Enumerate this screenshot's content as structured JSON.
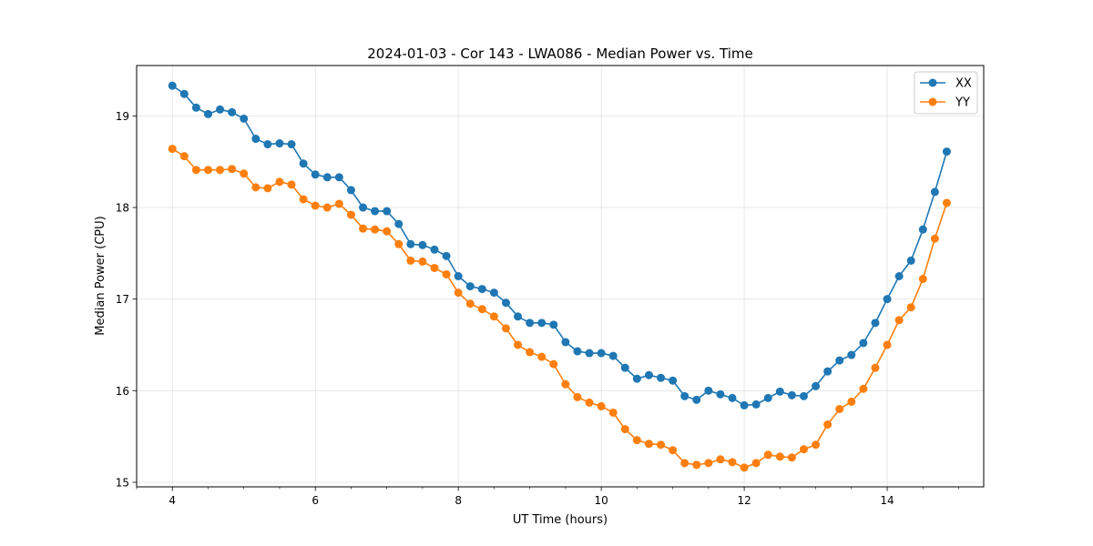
{
  "chart_data": {
    "type": "line",
    "title": "2024-01-03 - Cor 143 - LWA086 - Median Power vs. Time",
    "xlabel": "UT Time (hours)",
    "ylabel": "Median Power (CPU)",
    "xlim": [
      3.5,
      15.35
    ],
    "ylim": [
      14.95,
      19.55
    ],
    "xticks": [
      4,
      6,
      8,
      10,
      12,
      14
    ],
    "xtick_labels": [
      "4",
      "6",
      "8",
      "10",
      "12",
      "14"
    ],
    "xminor_step": 0.5,
    "yticks": [
      15,
      16,
      17,
      18,
      19
    ],
    "ytick_labels": [
      "15",
      "16",
      "17",
      "18",
      "19"
    ],
    "grid": true,
    "legend_position": "top-right",
    "x": [
      4.0,
      4.1667,
      4.3333,
      4.5,
      4.6667,
      4.8333,
      5.0,
      5.1667,
      5.3333,
      5.5,
      5.6667,
      5.8333,
      6.0,
      6.1667,
      6.3333,
      6.5,
      6.6667,
      6.8333,
      7.0,
      7.1667,
      7.3333,
      7.5,
      7.6667,
      7.8333,
      8.0,
      8.1667,
      8.3333,
      8.5,
      8.6667,
      8.8333,
      9.0,
      9.1667,
      9.3333,
      9.5,
      9.6667,
      9.8333,
      10.0,
      10.1667,
      10.3333,
      10.5,
      10.6667,
      10.8333,
      11.0,
      11.1667,
      11.3333,
      11.5,
      11.6667,
      11.8333,
      12.0,
      12.1667,
      12.3333,
      12.5,
      12.6667,
      12.8333,
      13.0,
      13.1667,
      13.3333,
      13.5,
      13.6667,
      13.8333,
      14.0,
      14.1667,
      14.3333,
      14.5,
      14.6667,
      14.8333
    ],
    "series": [
      {
        "name": "XX",
        "color": "#1f77b4",
        "values": [
          19.33,
          19.24,
          19.09,
          19.02,
          19.07,
          19.04,
          18.97,
          18.75,
          18.69,
          18.7,
          18.69,
          18.48,
          18.36,
          18.33,
          18.33,
          18.19,
          18.0,
          17.96,
          17.96,
          17.82,
          17.6,
          17.59,
          17.54,
          17.47,
          17.25,
          17.14,
          17.11,
          17.07,
          16.96,
          16.81,
          16.74,
          16.74,
          16.72,
          16.53,
          16.43,
          16.41,
          16.41,
          16.38,
          16.25,
          16.13,
          16.17,
          16.14,
          16.11,
          15.94,
          15.9,
          16.0,
          15.96,
          15.92,
          15.84,
          15.85,
          15.92,
          15.99,
          15.95,
          15.94,
          16.05,
          16.21,
          16.33,
          16.39,
          16.52,
          16.74,
          17.0,
          17.25,
          17.42,
          17.76,
          18.17,
          18.61
        ]
      },
      {
        "name": "YY",
        "color": "#ff7f0e",
        "values": [
          18.64,
          18.56,
          18.41,
          18.41,
          18.41,
          18.42,
          18.37,
          18.22,
          18.21,
          18.28,
          18.25,
          18.09,
          18.02,
          18.0,
          18.04,
          17.92,
          17.77,
          17.76,
          17.74,
          17.6,
          17.42,
          17.41,
          17.34,
          17.27,
          17.07,
          16.95,
          16.89,
          16.81,
          16.68,
          16.5,
          16.42,
          16.37,
          16.29,
          16.07,
          15.93,
          15.87,
          15.83,
          15.76,
          15.58,
          15.46,
          15.42,
          15.41,
          15.35,
          15.21,
          15.19,
          15.21,
          15.25,
          15.22,
          15.16,
          15.21,
          15.3,
          15.28,
          15.27,
          15.36,
          15.41,
          15.63,
          15.8,
          15.88,
          16.02,
          16.25,
          16.5,
          16.77,
          16.91,
          17.22,
          17.66,
          18.05
        ]
      }
    ]
  }
}
